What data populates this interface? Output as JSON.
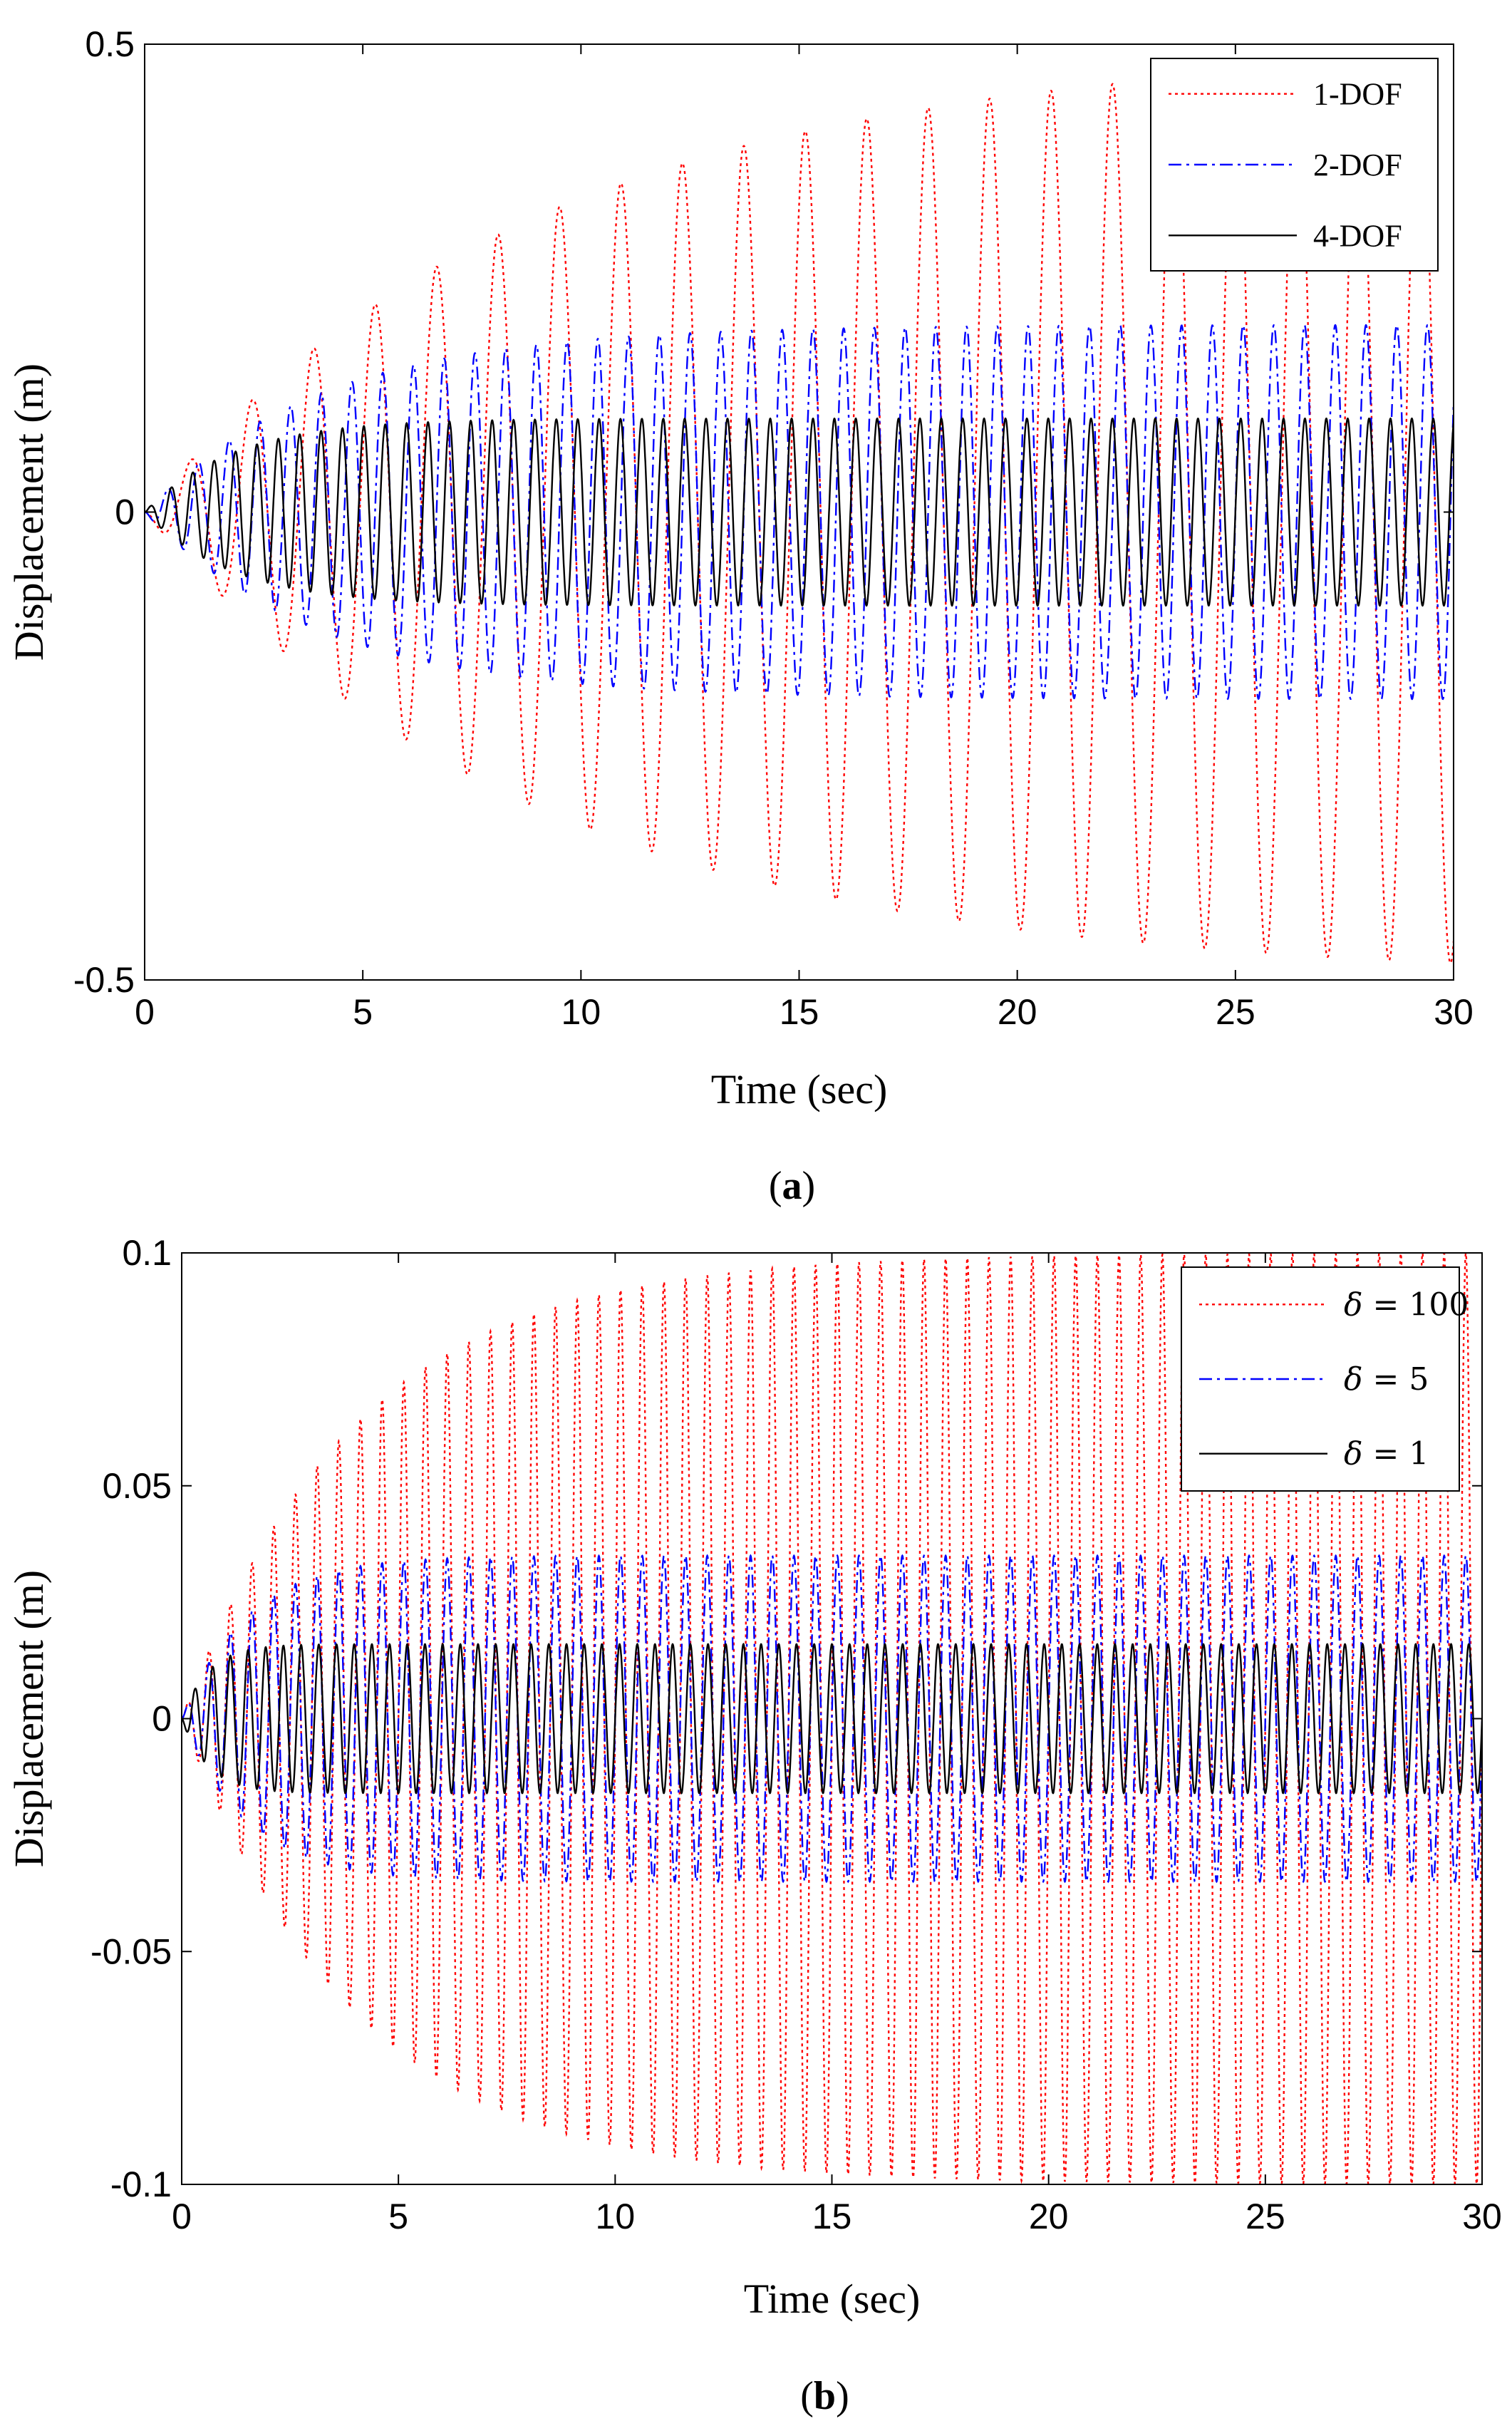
{
  "chart_data": [
    {
      "type": "line",
      "panel": "a",
      "caption": {
        "open": "(",
        "label": "a",
        "close": ")"
      },
      "xlabel": "Time (sec)",
      "ylabel": "Displacement (m)",
      "xlim": [
        0,
        30
      ],
      "ylim": [
        -0.5,
        0.5
      ],
      "xticks": [
        0,
        5,
        10,
        15,
        20,
        25,
        30
      ],
      "yticks": [
        -0.5,
        0,
        0.5
      ],
      "ytick_labels": [
        "-0.5",
        "0",
        "0.5"
      ],
      "legend_position": "top-right",
      "series": [
        {
          "name": "1-DOF",
          "color": "#ff0000",
          "dash": "dotted",
          "amplitude": 0.5,
          "frequency_hz": 0.71,
          "rise_time_s": 9.0,
          "sign": -1
        },
        {
          "name": "2-DOF",
          "color": "#0000ff",
          "dash": "dash-dot",
          "amplitude": 0.2,
          "frequency_hz": 1.42,
          "rise_time_s": 4.0,
          "sign": -1
        },
        {
          "name": "4-DOF",
          "color": "#000000",
          "dash": "solid",
          "amplitude": 0.1,
          "frequency_hz": 2.04,
          "rise_time_s": 2.0,
          "sign": 1
        }
      ]
    },
    {
      "type": "line",
      "panel": "b",
      "caption": {
        "open": "(",
        "label": "b",
        "close": ")"
      },
      "xlabel": "Time (sec)",
      "ylabel": "Displacement (m)",
      "xlim": [
        0,
        30
      ],
      "ylim": [
        -0.1,
        0.1
      ],
      "xticks": [
        0,
        5,
        10,
        15,
        20,
        25,
        30
      ],
      "yticks": [
        -0.1,
        -0.05,
        0,
        0.05,
        0.1
      ],
      "ytick_labels": [
        "-0.1",
        "-0.05",
        "0",
        "0.05",
        "0.1"
      ],
      "legend_position": "top-right",
      "series": [
        {
          "name": "δ = 100",
          "sym": "δ",
          "eq": "= 100",
          "color": "#ff0000",
          "dash": "dotted",
          "amplitude": 0.1,
          "frequency_hz": 2.0,
          "rise_time_s": 4.0,
          "sign": 1
        },
        {
          "name": "δ = 5",
          "sym": "δ",
          "eq": "= 5",
          "color": "#0000ff",
          "dash": "dash-dot",
          "amplitude": 0.035,
          "frequency_hz": 2.0,
          "rise_time_s": 1.5,
          "sign": 1
        },
        {
          "name": "δ = 1",
          "sym": "δ",
          "eq": "= 1",
          "color": "#000000",
          "dash": "solid",
          "amplitude": 0.016,
          "frequency_hz": 2.45,
          "rise_time_s": 0.6,
          "sign": -1
        }
      ]
    }
  ]
}
